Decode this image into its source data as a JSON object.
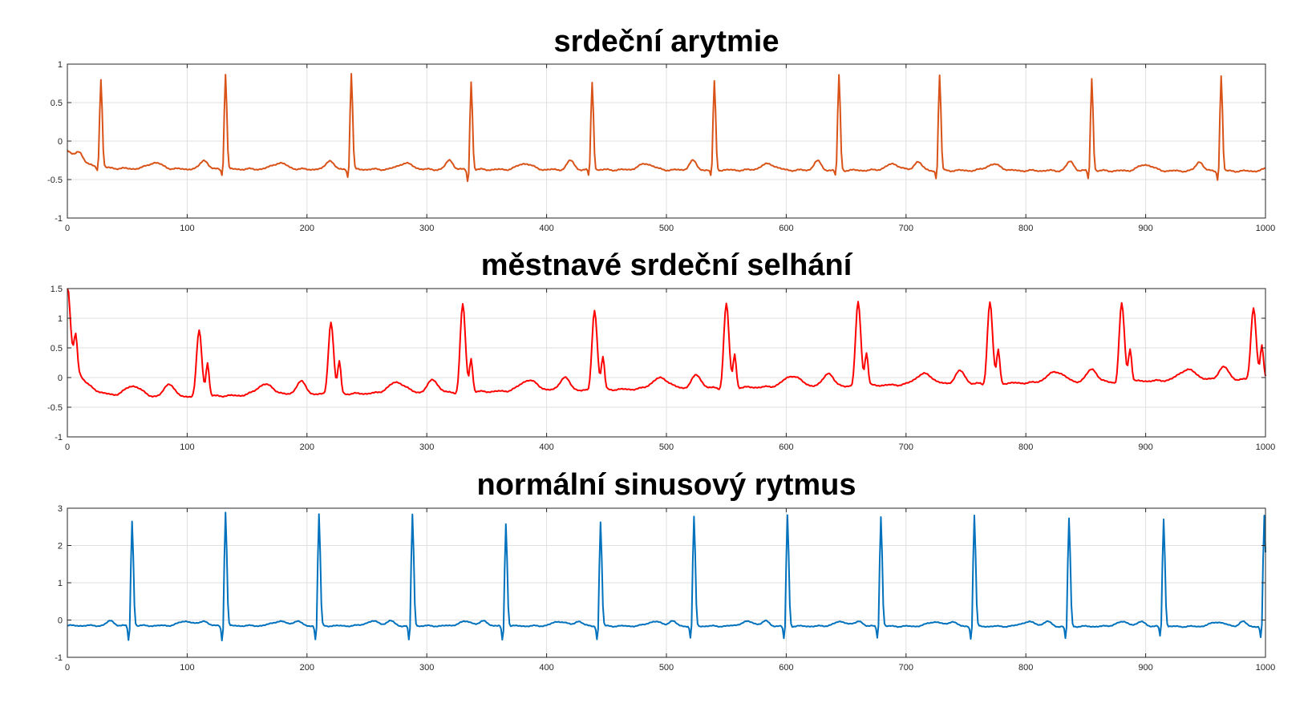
{
  "chart_data": [
    {
      "type": "line",
      "title": "srdeční arytmie",
      "xlabel": "",
      "ylabel": "",
      "xlim": [
        0,
        1000
      ],
      "ylim": [
        -1,
        1
      ],
      "xticks": [
        0,
        100,
        200,
        300,
        400,
        500,
        600,
        700,
        800,
        900,
        1000
      ],
      "yticks": [
        -1,
        -0.5,
        0,
        0.5,
        1
      ],
      "color": "#D95319",
      "grid": true,
      "baseline_start": -0.12,
      "baseline_level": -0.36,
      "baseline_end": -0.42,
      "beats": [
        {
          "x": 28,
          "r": 0.78,
          "s": -0.46
        },
        {
          "x": 132,
          "r": 0.88,
          "s": -0.51
        },
        {
          "x": 237,
          "r": 0.89,
          "s": -0.55
        },
        {
          "x": 337,
          "r": 0.79,
          "s": -0.63
        },
        {
          "x": 438,
          "r": 0.79,
          "s": -0.51
        },
        {
          "x": 540,
          "r": 0.8,
          "s": -0.51
        },
        {
          "x": 644,
          "r": 0.88,
          "s": -0.5
        },
        {
          "x": 728,
          "r": 0.89,
          "s": -0.55
        },
        {
          "x": 855,
          "r": 0.85,
          "s": -0.55
        },
        {
          "x": 963,
          "r": 0.89,
          "s": -0.56
        }
      ]
    },
    {
      "type": "line",
      "title": "městnavé srdeční selhání",
      "xlabel": "",
      "ylabel": "",
      "xlim": [
        0,
        1000
      ],
      "ylim": [
        -1,
        1.5
      ],
      "xticks": [
        0,
        100,
        200,
        300,
        400,
        500,
        600,
        700,
        800,
        900,
        1000
      ],
      "yticks": [
        -1,
        -0.5,
        0,
        0.5,
        1,
        1.5
      ],
      "color": "#FF0000",
      "grid": true,
      "baseline_start": 0.62,
      "baseline_level": -0.35,
      "baseline_end": 0.3,
      "beats": [
        {
          "x": 0,
          "r": 0.65,
          "s": -0.35
        },
        {
          "x": 110,
          "r": 0.76,
          "s": -0.4
        },
        {
          "x": 220,
          "r": 0.87,
          "s": -0.4
        },
        {
          "x": 330,
          "r": 1.13,
          "s": -0.45
        },
        {
          "x": 440,
          "r": 1.0,
          "s": -0.45
        },
        {
          "x": 550,
          "r": 1.07,
          "s": -0.45
        },
        {
          "x": 660,
          "r": 1.07,
          "s": -0.45
        },
        {
          "x": 770,
          "r": 1.03,
          "s": -0.45
        },
        {
          "x": 880,
          "r": 0.97,
          "s": -0.48
        },
        {
          "x": 990,
          "r": 0.86,
          "s": -0.4
        }
      ]
    },
    {
      "type": "line",
      "title": "normální sinusový rytmus",
      "xlabel": "",
      "ylabel": "",
      "xlim": [
        0,
        1000
      ],
      "ylim": [
        -1,
        3
      ],
      "xticks": [
        0,
        100,
        200,
        300,
        400,
        500,
        600,
        700,
        800,
        900,
        1000
      ],
      "yticks": [
        -1,
        0,
        1,
        2,
        3
      ],
      "color": "#0072BD",
      "grid": true,
      "baseline_start": -0.15,
      "baseline_level": -0.15,
      "baseline_end": -0.2,
      "beats": [
        {
          "x": 54,
          "r": 2.69,
          "s": -0.82
        },
        {
          "x": 132,
          "r": 2.93,
          "s": -0.83
        },
        {
          "x": 210,
          "r": 2.87,
          "s": -0.8
        },
        {
          "x": 288,
          "r": 2.88,
          "s": -0.82
        },
        {
          "x": 366,
          "r": 2.62,
          "s": -0.82
        },
        {
          "x": 445,
          "r": 2.66,
          "s": -0.78
        },
        {
          "x": 523,
          "r": 2.81,
          "s": -0.72
        },
        {
          "x": 601,
          "r": 2.85,
          "s": -0.76
        },
        {
          "x": 679,
          "r": 2.82,
          "s": -0.7
        },
        {
          "x": 757,
          "r": 2.86,
          "s": -0.74
        },
        {
          "x": 836,
          "r": 2.77,
          "s": -0.74
        },
        {
          "x": 915,
          "r": 2.76,
          "s": -0.64
        },
        {
          "x": 999,
          "r": 2.84,
          "s": -0.7
        }
      ]
    }
  ]
}
